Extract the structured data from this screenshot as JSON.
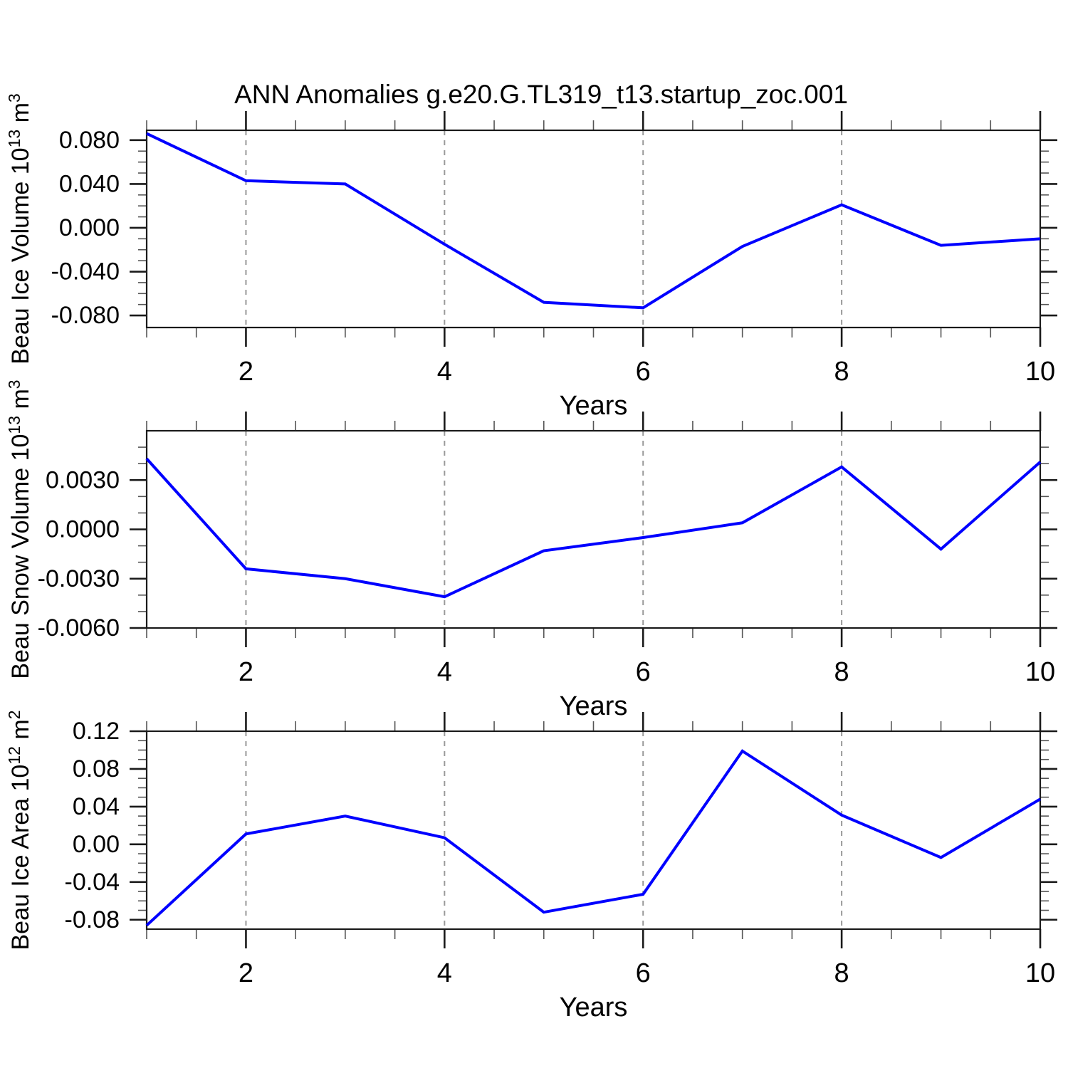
{
  "title": "ANN Anomalies g.e20.G.TL319_t13.startup_zoc.001",
  "line_color": "#0000ff",
  "grid_color": "#999999",
  "axis_color": "#1a1a1a",
  "minor_tick_color": "#555555",
  "chart_data": [
    {
      "type": "line",
      "ylabel": "Beau Ice Volume 10^13^ m^3^",
      "xlabel": "Years",
      "x": [
        1,
        2,
        3,
        4,
        5,
        6,
        7,
        8,
        9,
        10
      ],
      "values": [
        0.086,
        0.043,
        0.04,
        -0.015,
        -0.068,
        -0.073,
        -0.017,
        0.021,
        -0.016,
        -0.01
      ],
      "xlim": [
        1,
        10
      ],
      "ylim": [
        -0.091,
        0.089
      ],
      "xticks": [
        {
          "v": 2,
          "label": "2"
        },
        {
          "v": 4,
          "label": "4"
        },
        {
          "v": 6,
          "label": "6"
        },
        {
          "v": 8,
          "label": "8"
        },
        {
          "v": 10,
          "label": "10"
        }
      ],
      "x_minor_step": 0.5,
      "yticks": [
        {
          "v": 0.08,
          "label": "0.080"
        },
        {
          "v": 0.04,
          "label": "0.040"
        },
        {
          "v": 0.0,
          "label": "0.000"
        },
        {
          "v": -0.04,
          "label": "-0.040"
        },
        {
          "v": -0.08,
          "label": "-0.080"
        }
      ],
      "y_minor_step": 0.01,
      "grid_x": [
        2,
        4,
        6,
        8
      ],
      "grid_on": true,
      "legend": "none"
    },
    {
      "type": "line",
      "ylabel": "Beau Snow Volume 10^13^ m^3^",
      "xlabel": "Years",
      "x": [
        1,
        2,
        3,
        4,
        5,
        6,
        7,
        8,
        9,
        10
      ],
      "values": [
        0.0043,
        -0.0024,
        -0.003,
        -0.0041,
        -0.0013,
        -0.0005,
        0.0004,
        0.0038,
        -0.0012,
        0.0041
      ],
      "xlim": [
        1,
        10
      ],
      "ylim": [
        -0.006,
        0.006
      ],
      "xticks": [
        {
          "v": 2,
          "label": "2"
        },
        {
          "v": 4,
          "label": "4"
        },
        {
          "v": 6,
          "label": "6"
        },
        {
          "v": 8,
          "label": "8"
        },
        {
          "v": 10,
          "label": "10"
        }
      ],
      "x_minor_step": 0.5,
      "yticks": [
        {
          "v": 0.003,
          "label": "0.0030"
        },
        {
          "v": 0.0,
          "label": "0.0000"
        },
        {
          "v": -0.003,
          "label": "-0.0030"
        },
        {
          "v": -0.006,
          "label": "-0.0060"
        }
      ],
      "y_minor_step": 0.001,
      "grid_x": [
        2,
        4,
        6,
        8
      ],
      "grid_on": true,
      "legend": "none"
    },
    {
      "type": "line",
      "ylabel": "Beau Ice Area 10^12^ m^2^",
      "xlabel": "Years",
      "x": [
        1,
        2,
        3,
        4,
        5,
        6,
        7,
        8,
        9,
        10
      ],
      "values": [
        -0.086,
        0.011,
        0.03,
        0.007,
        -0.072,
        -0.053,
        0.099,
        0.031,
        -0.014,
        0.048
      ],
      "xlim": [
        1,
        10
      ],
      "ylim": [
        -0.09,
        0.12
      ],
      "xticks": [
        {
          "v": 2,
          "label": "2"
        },
        {
          "v": 4,
          "label": "4"
        },
        {
          "v": 6,
          "label": "6"
        },
        {
          "v": 8,
          "label": "8"
        },
        {
          "v": 10,
          "label": "10"
        }
      ],
      "x_minor_step": 0.5,
      "yticks": [
        {
          "v": 0.12,
          "label": "0.12"
        },
        {
          "v": 0.08,
          "label": "0.08"
        },
        {
          "v": 0.04,
          "label": "0.04"
        },
        {
          "v": 0.0,
          "label": "0.00"
        },
        {
          "v": -0.04,
          "label": "-0.04"
        },
        {
          "v": -0.08,
          "label": "-0.08"
        }
      ],
      "y_minor_step": 0.01,
      "grid_x": [
        2,
        4,
        6,
        8
      ],
      "grid_on": true,
      "legend": "none"
    }
  ]
}
